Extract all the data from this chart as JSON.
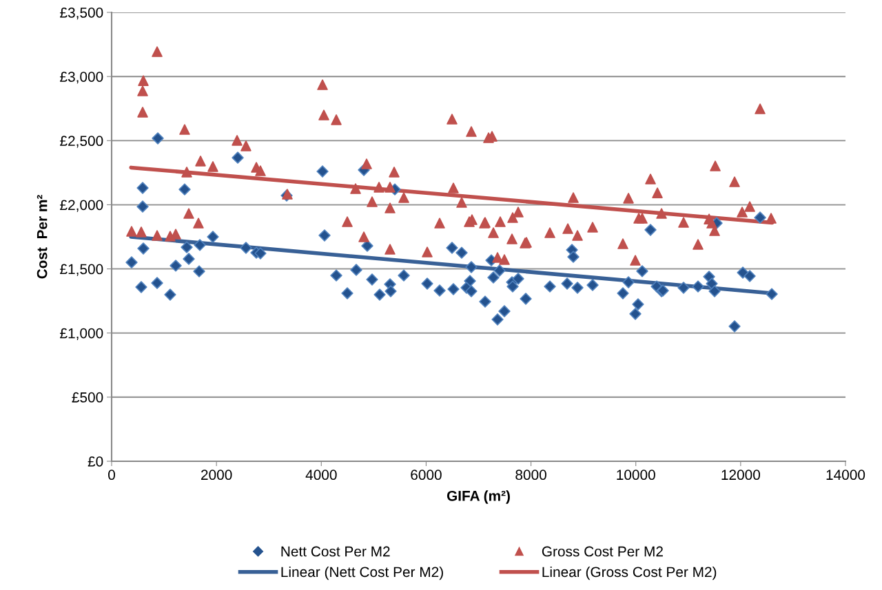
{
  "chart_data": {
    "type": "scatter",
    "xlabel": "GIFA (m²)",
    "ylabel": "Cost  Per m²",
    "xlim": [
      0,
      14000
    ],
    "xticks": [
      0,
      2000,
      4000,
      6000,
      8000,
      10000,
      12000,
      14000
    ],
    "ylim": [
      0,
      3500
    ],
    "yticks": [
      {
        "value": 0,
        "label": "£0"
      },
      {
        "value": 500,
        "label": "£500"
      },
      {
        "value": 1000,
        "label": "£1,000"
      },
      {
        "value": 1500,
        "label": "£1,500"
      },
      {
        "value": 2000,
        "label": "£2,000"
      },
      {
        "value": 2500,
        "label": "£2,500"
      },
      {
        "value": 3000,
        "label": "£3,000"
      },
      {
        "value": 3500,
        "label": "£3,500"
      }
    ],
    "grid": "y",
    "legend": "bottom",
    "series": [
      {
        "name": "Nett Cost Per M2",
        "marker": "diamond",
        "color": "#24528e",
        "x": [
          381,
          565,
          592,
          592,
          605,
          868,
          881,
          1117,
          1223,
          1393,
          1433,
          1472,
          1670,
          1683,
          1932,
          2406,
          2563,
          2761,
          2839,
          3339,
          4023,
          4812,
          4062,
          4877,
          4286,
          4667,
          4496,
          4969,
          5114,
          5311,
          5324,
          5403,
          5574,
          6021,
          6258,
          6520,
          6494,
          6678,
          6862,
          6836,
          6770,
          6862,
          7125,
          7244,
          7283,
          7401,
          7362,
          7493,
          7638,
          7651,
          7756,
          7901,
          8361,
          8690,
          8782,
          8808,
          8887,
          9176,
          9754,
          9860,
          10043,
          9991,
          10122,
          10280,
          10399,
          10491,
          10517,
          10911,
          11187,
          11398,
          11450,
          11503,
          11542,
          11884,
          12042,
          12174,
          12371,
          12594
        ],
        "values": [
          1551,
          1358,
          2131,
          1986,
          1659,
          1390,
          2518,
          1299,
          1525,
          2120,
          1669,
          1578,
          1481,
          1686,
          1750,
          2367,
          1664,
          1626,
          1621,
          2072,
          2260,
          2271,
          1761,
          1680,
          1449,
          1492,
          1310,
          1417,
          1299,
          1380,
          1326,
          2120,
          1449,
          1385,
          1331,
          1342,
          1664,
          1626,
          1514,
          1406,
          1353,
          1326,
          1245,
          1567,
          1433,
          1487,
          1106,
          1170,
          1396,
          1363,
          1423,
          1267,
          1363,
          1385,
          1648,
          1594,
          1353,
          1374,
          1310,
          1396,
          1224,
          1149,
          1482,
          1804,
          1363,
          1326,
          1331,
          1353,
          1363,
          1439,
          1385,
          1326,
          1857,
          1052,
          1471,
          1444,
          1900,
          1304
        ]
      },
      {
        "name": "Gross Cost Per M2",
        "marker": "triangle",
        "color": "#c0504d",
        "x": [
          868,
          605,
          592,
          592,
          1393,
          2393,
          2563,
          1696,
          1932,
          1433,
          2761,
          2839,
          3352,
          1472,
          1656,
          381,
          565,
          868,
          1117,
          1223,
          4023,
          4049,
          4286,
          6494,
          6862,
          7191,
          4864,
          5390,
          4654,
          5101,
          5311,
          6520,
          5574,
          4969,
          5311,
          6678,
          4496,
          6258,
          6823,
          6875,
          7125,
          4812,
          5311,
          6021,
          7257,
          7112,
          7414,
          7283,
          7651,
          7756,
          7638,
          7888,
          7914,
          7362,
          7493,
          8361,
          8808,
          8703,
          8887,
          9176,
          9754,
          9860,
          9991,
          10057,
          10122,
          10280,
          10412,
          10491,
          10911,
          11187,
          11398,
          11450,
          11503,
          11516,
          11884,
          12029,
          12174,
          12371,
          12581
        ],
        "values": [
          3194,
          2968,
          2888,
          2722,
          2587,
          2502,
          2459,
          2341,
          2298,
          2255,
          2292,
          2265,
          2083,
          1932,
          1857,
          1793,
          1788,
          1761,
          1755,
          1771,
          2936,
          2700,
          2663,
          2668,
          2571,
          2523,
          2319,
          2255,
          2126,
          2137,
          2137,
          2131,
          2056,
          2024,
          1975,
          2018,
          1868,
          1857,
          1868,
          1884,
          1863,
          1750,
          1653,
          1632,
          2534,
          1857,
          1868,
          1782,
          1900,
          1943,
          1734,
          1702,
          1707,
          1589,
          1573,
          1782,
          2056,
          1814,
          1761,
          1825,
          1696,
          2051,
          1567,
          1895,
          1895,
          2201,
          2093,
          1932,
          1863,
          1691,
          1889,
          1857,
          1798,
          2303,
          2179,
          1943,
          1986,
          2748,
          1895
        ]
      },
      {
        "name": "Linear (Nett Cost Per M2)",
        "type": "line",
        "marker": "none",
        "color": "#386096",
        "x": [
          370,
          12600
        ],
        "values": [
          1750,
          1310
        ]
      },
      {
        "name": "Linear (Gross Cost Per M2)",
        "type": "line",
        "marker": "none",
        "color": "#c0504d",
        "x": [
          370,
          12600
        ],
        "values": [
          2290,
          1860
        ]
      }
    ]
  }
}
